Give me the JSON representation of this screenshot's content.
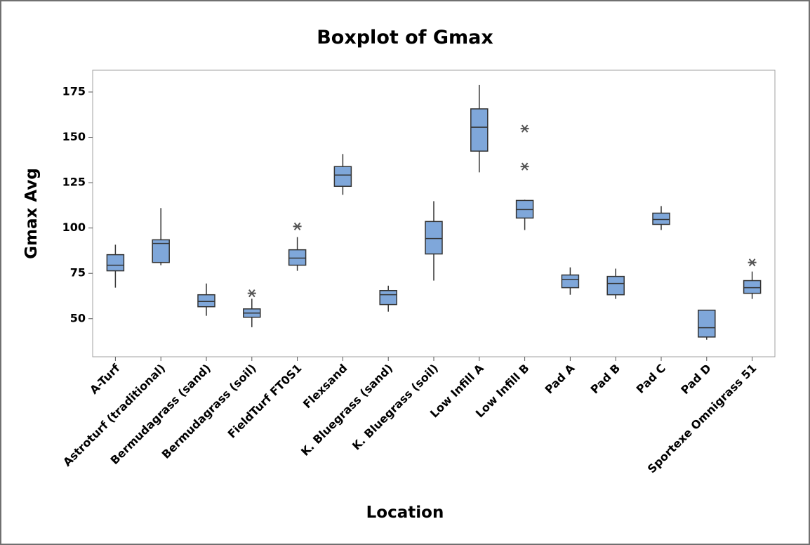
{
  "chart_data": {
    "type": "box",
    "title": "Boxplot of Gmax",
    "x_label": "Location",
    "y_label": "Gmax Avg",
    "color": "#7fa7da",
    "categories": [
      "A-Turf",
      "Astroturf (traditional)",
      "Bermudagrass (sand)",
      "Bermudagrass (soil)",
      "FieldTurf FT0S1",
      "Flexsand",
      "K. Bluegrass (sand)",
      "K. Bluegrass (soil)",
      "Low Infill A",
      "Low Infill B",
      "Pad A",
      "Pad B",
      "Pad C",
      "Pad D",
      "Sportexe Omnigrass 51"
    ],
    "boxes": [
      {
        "low": 67.1,
        "q1": 76.4,
        "median": 79.5,
        "q3": 85.3,
        "high": 90.8,
        "outliers": []
      },
      {
        "low": 79.5,
        "q1": 81,
        "median": 91.5,
        "q3": 93.5,
        "high": 111,
        "outliers": []
      },
      {
        "low": 51.6,
        "q1": 56.6,
        "median": 59.5,
        "q3": 63.2,
        "high": 69.4,
        "outliers": []
      },
      {
        "low": 45.3,
        "q1": 50.8,
        "median": 53.1,
        "q3": 55.4,
        "high": 61,
        "outliers": [
          64
        ]
      },
      {
        "low": 76.4,
        "q1": 79.5,
        "median": 83.4,
        "q3": 88,
        "high": 95,
        "outliers": [
          100.9
        ]
      },
      {
        "low": 118.3,
        "q1": 123,
        "median": 129.2,
        "q3": 133.9,
        "high": 140.8,
        "outliers": []
      },
      {
        "low": 53.9,
        "q1": 57.8,
        "median": 63.2,
        "q3": 65.5,
        "high": 68.2,
        "outliers": []
      },
      {
        "low": 71,
        "q1": 85.7,
        "median": 94.2,
        "q3": 103.6,
        "high": 114.8,
        "outliers": []
      },
      {
        "low": 130.7,
        "q1": 142.4,
        "median": 155.6,
        "q3": 165.7,
        "high": 178.9,
        "outliers": []
      },
      {
        "low": 98.9,
        "q1": 105.5,
        "median": 110.2,
        "q3": 115.2,
        "high": 115.6,
        "outliers": [
          154.8,
          133.9
        ]
      },
      {
        "low": 63.2,
        "q1": 67.1,
        "median": 71.7,
        "q3": 74.1,
        "high": 78.3,
        "outliers": []
      },
      {
        "low": 60.9,
        "q1": 63.2,
        "median": 69.4,
        "q3": 73.3,
        "high": 77.6,
        "outliers": []
      },
      {
        "low": 98.9,
        "q1": 102,
        "median": 104.7,
        "q3": 108.2,
        "high": 112.1,
        "outliers": []
      },
      {
        "low": 38.4,
        "q1": 39.9,
        "median": 45,
        "q3": 54.7,
        "high": 54.7,
        "outliers": []
      },
      {
        "low": 60.9,
        "q1": 64,
        "median": 67.1,
        "q3": 71,
        "high": 76,
        "outliers": [
          81
        ]
      }
    ],
    "ylim": [
      29,
      187
    ],
    "yticks": [
      50,
      75,
      100,
      125,
      150,
      175
    ]
  }
}
